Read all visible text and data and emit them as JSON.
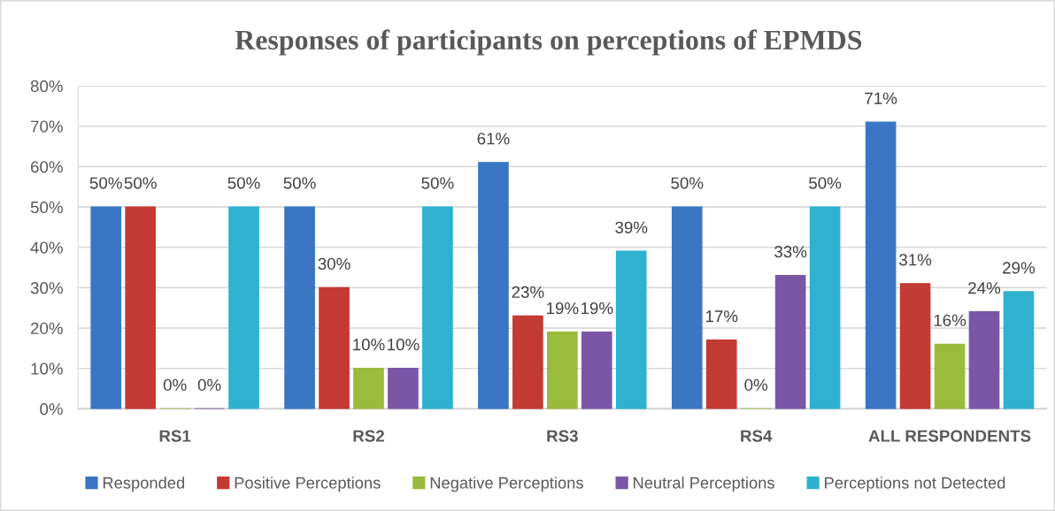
{
  "chart_data": {
    "type": "bar",
    "title": "Responses of participants on perceptions of EPMDS",
    "categories": [
      "RS1",
      "RS2",
      "RS3",
      "RS4",
      "ALL RESPONDENTS"
    ],
    "series": [
      {
        "name": "Responded",
        "color": "#3a76c4",
        "values": [
          50,
          50,
          61,
          50,
          71
        ],
        "value_labels": [
          "50%",
          "50%",
          "61%",
          "50%",
          "71%"
        ]
      },
      {
        "name": "Positive Perceptions",
        "color": "#c43a35",
        "values": [
          50,
          30,
          23,
          17,
          31
        ],
        "value_labels": [
          "50%",
          "30%",
          "23%",
          "17%",
          "31%"
        ]
      },
      {
        "name": "Negative Perceptions",
        "color": "#9bbb3c",
        "values": [
          0,
          10,
          19,
          0,
          16
        ],
        "value_labels": [
          "0%",
          "10%",
          "19%",
          "0%",
          "16%"
        ]
      },
      {
        "name": "Neutral Perceptions",
        "color": "#7a57a6",
        "values": [
          0,
          10,
          19,
          33,
          24
        ],
        "value_labels": [
          "0%",
          "10%",
          "19%",
          "33%",
          "24%"
        ]
      },
      {
        "name": "Perceptions not Detected",
        "color": "#2fb2cf",
        "values": [
          50,
          50,
          39,
          50,
          29
        ],
        "value_labels": [
          "50%",
          "50%",
          "39%",
          "50%",
          "29%"
        ]
      }
    ],
    "ylim": [
      0,
      80
    ],
    "yticks": [
      {
        "value": 0,
        "label": "0%"
      },
      {
        "value": 10,
        "label": "10%"
      },
      {
        "value": 20,
        "label": "20%"
      },
      {
        "value": 30,
        "label": "30%"
      },
      {
        "value": 40,
        "label": "40%"
      },
      {
        "value": 50,
        "label": "50%"
      },
      {
        "value": 60,
        "label": "60%"
      },
      {
        "value": 70,
        "label": "70%"
      },
      {
        "value": 80,
        "label": "80%"
      }
    ],
    "grid": "y",
    "legend": "bottom"
  }
}
